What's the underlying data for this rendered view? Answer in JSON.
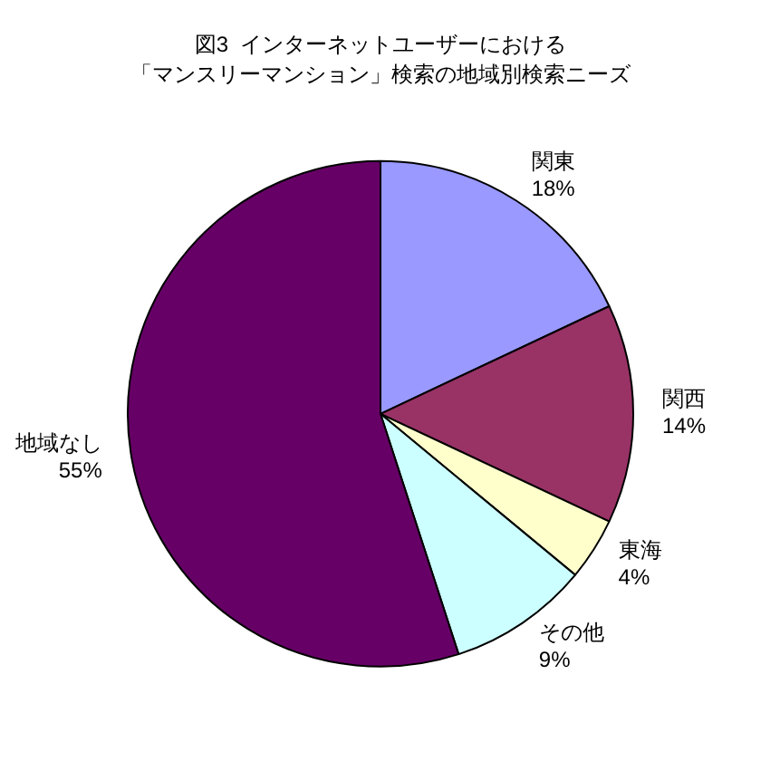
{
  "chart_data": {
    "type": "pie",
    "title": "図3  インターネットユーザーにおける",
    "subtitle": "「マンスリーマンション」検索の地域別検索ニーズ",
    "categories": [
      "関東",
      "関西",
      "東海",
      "その他",
      "地域なし"
    ],
    "values": [
      18,
      14,
      4,
      9,
      55
    ],
    "value_labels": [
      "18%",
      "14%",
      "4%",
      "9%",
      "55%"
    ],
    "colors": [
      "#9999ff",
      "#993366",
      "#ffffcc",
      "#ccffff",
      "#660066"
    ],
    "legend": false
  }
}
